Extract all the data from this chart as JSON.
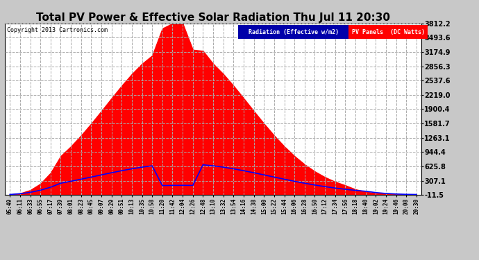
{
  "title": "Total PV Power & Effective Solar Radiation Thu Jul 11 20:30",
  "copyright": "Copyright 2013 Cartronics.com",
  "background_color": "#c8c8c8",
  "plot_bg_color": "#ffffff",
  "title_color": "#000000",
  "title_bg": "#c8c8c8",
  "title_fontsize": 11,
  "yticks": [
    -11.5,
    307.1,
    625.8,
    944.4,
    1263.1,
    1581.7,
    1900.4,
    2219.0,
    2537.6,
    2856.3,
    3174.9,
    3493.6,
    3812.2
  ],
  "ymin": -11.5,
  "ymax": 3812.2,
  "x_labels": [
    "05:49",
    "06:11",
    "06:33",
    "06:55",
    "07:17",
    "07:39",
    "08:01",
    "08:23",
    "08:45",
    "09:07",
    "09:29",
    "09:51",
    "10:13",
    "10:35",
    "10:58",
    "11:20",
    "11:42",
    "12:04",
    "12:26",
    "12:48",
    "13:10",
    "13:32",
    "13:54",
    "14:16",
    "14:38",
    "15:00",
    "15:22",
    "15:44",
    "16:06",
    "16:28",
    "16:50",
    "17:12",
    "17:34",
    "17:56",
    "18:18",
    "18:40",
    "19:02",
    "19:24",
    "19:46",
    "20:08",
    "20:30"
  ],
  "grid_color": "#aaaaaa",
  "pv_color": "#ff0000",
  "radiation_color": "#0000ff",
  "legend_radiation_bg": "#0000aa",
  "legend_pv_bg": "#ff0000",
  "legend_radiation_text": "Radiation (Effective w/m2)",
  "legend_pv_text": "PV Panels  (DC Watts)"
}
